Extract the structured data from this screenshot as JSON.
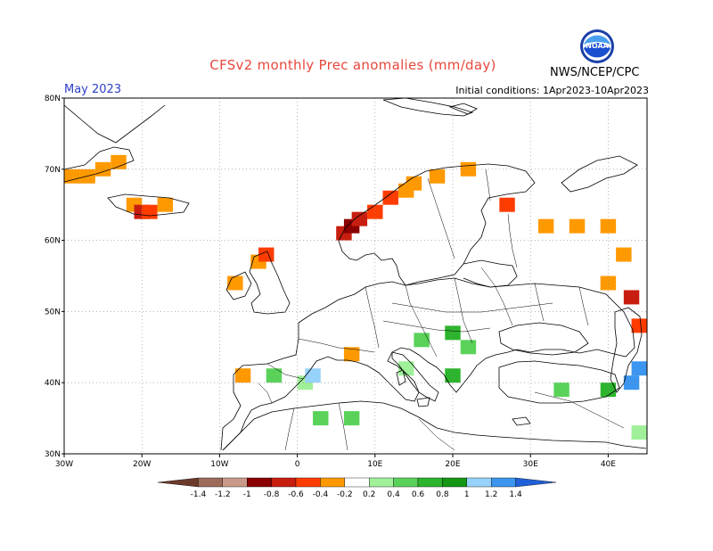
{
  "header": {
    "title": "CFSv2 monthly Prec anomalies (mm/day)",
    "month": "May 2023",
    "initial_conditions": "Initial conditions: 1Apr2023-10Apr2023",
    "agency": "NWS/NCEP/CPC",
    "logo_text": "NOAA"
  },
  "map": {
    "lon_range": [
      -30,
      45
    ],
    "lat_range": [
      30,
      80
    ],
    "lon_ticks": [
      "30W",
      "20W",
      "10W",
      "0",
      "10E",
      "20E",
      "30E",
      "40E"
    ],
    "lat_ticks": [
      "30N",
      "40N",
      "50N",
      "60N",
      "70N",
      "80N"
    ],
    "grid": true
  },
  "legend": {
    "labels": [
      "-1.4",
      "-1.2",
      "-1",
      "-0.8",
      "-0.6",
      "-0.4",
      "-0.2",
      "0.2",
      "0.4",
      "0.6",
      "0.8",
      "1",
      "1.2",
      "1.4"
    ],
    "colors": [
      "#6b3a2a",
      "#9c6b5a",
      "#c99a8a",
      "#8b0000",
      "#c81e0f",
      "#ff3c00",
      "#ff9900",
      "#ffffff",
      "#a0f09a",
      "#5ad25a",
      "#2db42d",
      "#159615",
      "#96d2fa",
      "#3c96f0",
      "#2060d8"
    ]
  },
  "chart_data": {
    "type": "heatmap",
    "units": "mm/day",
    "cells": [
      {
        "lon": -29,
        "lat": 69,
        "v": -0.3
      },
      {
        "lon": -27,
        "lat": 69,
        "v": -0.3
      },
      {
        "lon": -25,
        "lat": 70,
        "v": -0.3
      },
      {
        "lon": -23,
        "lat": 71,
        "v": -0.3
      },
      {
        "lon": -21,
        "lat": 65,
        "v": -0.3
      },
      {
        "lon": -20,
        "lat": 64,
        "v": -0.7
      },
      {
        "lon": -19,
        "lat": 64,
        "v": -0.5
      },
      {
        "lon": -17,
        "lat": 65,
        "v": -0.3
      },
      {
        "lon": -7,
        "lat": 41,
        "v": -0.3
      },
      {
        "lon": -8,
        "lat": 54,
        "v": -0.3
      },
      {
        "lon": -5,
        "lat": 57,
        "v": -0.3
      },
      {
        "lon": -4,
        "lat": 58,
        "v": -0.5
      },
      {
        "lon": 6,
        "lat": 61,
        "v": -0.7
      },
      {
        "lon": 7,
        "lat": 62,
        "v": -0.9
      },
      {
        "lon": 8,
        "lat": 63,
        "v": -0.7
      },
      {
        "lon": 10,
        "lat": 64,
        "v": -0.5
      },
      {
        "lon": 12,
        "lat": 66,
        "v": -0.5
      },
      {
        "lon": 14,
        "lat": 67,
        "v": -0.3
      },
      {
        "lon": 15,
        "lat": 68,
        "v": -0.3
      },
      {
        "lon": 18,
        "lat": 69,
        "v": -0.3
      },
      {
        "lon": 22,
        "lat": 70,
        "v": -0.3
      },
      {
        "lon": 27,
        "lat": 65,
        "v": -0.5
      },
      {
        "lon": 32,
        "lat": 62,
        "v": -0.3
      },
      {
        "lon": 36,
        "lat": 62,
        "v": -0.3
      },
      {
        "lon": 40,
        "lat": 62,
        "v": -0.3
      },
      {
        "lon": 42,
        "lat": 58,
        "v": -0.3
      },
      {
        "lon": 40,
        "lat": 54,
        "v": -0.3
      },
      {
        "lon": 43,
        "lat": 52,
        "v": -0.7
      },
      {
        "lon": 44,
        "lat": 48,
        "v": -0.5
      },
      {
        "lon": 7,
        "lat": 44,
        "v": -0.3
      },
      {
        "lon": 14,
        "lat": 42,
        "v": 0.3
      },
      {
        "lon": 16,
        "lat": 46,
        "v": 0.5
      },
      {
        "lon": 20,
        "lat": 47,
        "v": 0.7
      },
      {
        "lon": 22,
        "lat": 45,
        "v": 0.5
      },
      {
        "lon": 20,
        "lat": 41,
        "v": 0.7
      },
      {
        "lon": 1,
        "lat": 40,
        "v": 0.3
      },
      {
        "lon": -3,
        "lat": 41,
        "v": 0.5
      },
      {
        "lon": 2,
        "lat": 41,
        "v": 1.1
      },
      {
        "lon": 3,
        "lat": 35,
        "v": 0.5
      },
      {
        "lon": 7,
        "lat": 35,
        "v": 0.5
      },
      {
        "lon": 34,
        "lat": 39,
        "v": 0.5
      },
      {
        "lon": 40,
        "lat": 39,
        "v": 0.7
      },
      {
        "lon": 43,
        "lat": 40,
        "v": 1.3
      },
      {
        "lon": 44,
        "lat": 42,
        "v": 1.3
      },
      {
        "lon": 44,
        "lat": 33,
        "v": 0.3
      }
    ]
  }
}
